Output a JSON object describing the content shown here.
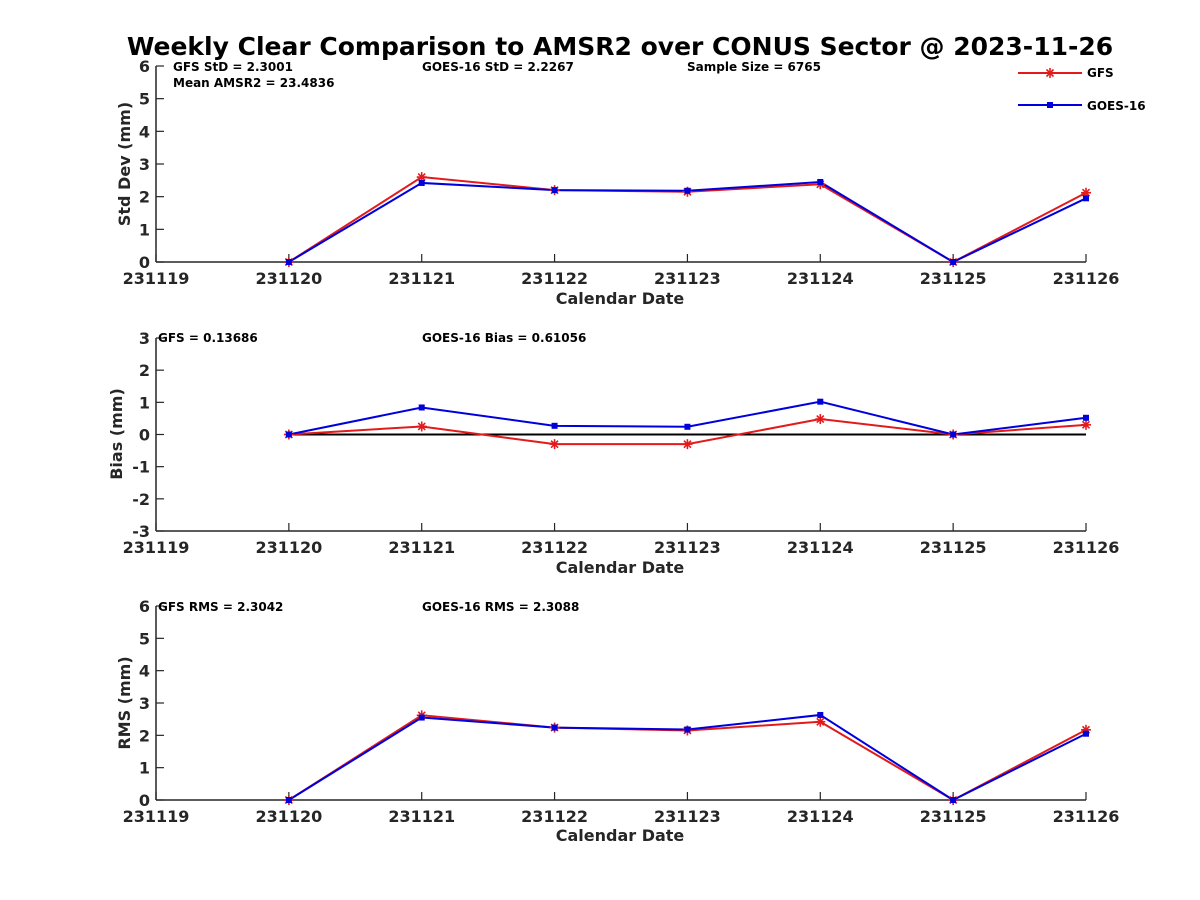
{
  "title": "Weekly Clear Comparison to AMSR2 over CONUS Sector @ 2023-11-26",
  "legend": [
    {
      "name": "GFS",
      "color": "#e31a1c",
      "marker": "asterisk"
    },
    {
      "name": "GOES-16",
      "color": "#0000dd",
      "marker": "square"
    }
  ],
  "chart_data": [
    {
      "type": "line",
      "categories": [
        "231119",
        "231120",
        "231121",
        "231122",
        "231123",
        "231124",
        "231125",
        "231126"
      ],
      "xlabel": "Calendar Date",
      "ylabel": "Std Dev (mm)",
      "ylim": [
        0,
        6
      ],
      "yticks": [
        "0",
        "1",
        "2",
        "3",
        "4",
        "5",
        "6"
      ],
      "annotations": {
        "gfs": "GFS StD = 2.3001",
        "goes": "GOES-16 StD = 2.2267",
        "sample": "Sample Size = 6765",
        "mean": "Mean AMSR2 = 23.4836"
      },
      "series": [
        {
          "name": "GFS",
          "color": "#e31a1c",
          "values": [
            null,
            0.0,
            2.6,
            2.2,
            2.15,
            2.38,
            0.0,
            2.12
          ]
        },
        {
          "name": "GOES-16",
          "color": "#0000dd",
          "values": [
            null,
            0.0,
            2.42,
            2.2,
            2.18,
            2.45,
            0.0,
            1.95
          ]
        }
      ]
    },
    {
      "type": "line",
      "categories": [
        "231119",
        "231120",
        "231121",
        "231122",
        "231123",
        "231124",
        "231125",
        "231126"
      ],
      "xlabel": "Calendar Date",
      "ylabel": "Bias (mm)",
      "ylim": [
        -3,
        3
      ],
      "yticks": [
        "-3",
        "-2",
        "-1",
        "0",
        "1",
        "2",
        "3"
      ],
      "zero_line": true,
      "annotations": {
        "gfs": "GFS = 0.13686",
        "goes": "GOES-16 Bias  = 0.61056"
      },
      "series": [
        {
          "name": "GFS",
          "color": "#e31a1c",
          "values": [
            null,
            0.0,
            0.25,
            -0.3,
            -0.3,
            0.48,
            0.0,
            0.3
          ]
        },
        {
          "name": "GOES-16",
          "color": "#0000dd",
          "values": [
            null,
            0.0,
            0.84,
            0.27,
            0.24,
            1.02,
            0.0,
            0.52
          ]
        }
      ]
    },
    {
      "type": "line",
      "categories": [
        "231119",
        "231120",
        "231121",
        "231122",
        "231123",
        "231124",
        "231125",
        "231126"
      ],
      "xlabel": "Calendar Date",
      "ylabel": "RMS (mm)",
      "ylim": [
        0,
        6
      ],
      "yticks": [
        "0",
        "1",
        "2",
        "3",
        "4",
        "5",
        "6"
      ],
      "annotations": {
        "gfs": "GFS RMS = 2.3042",
        "goes": "GOES-16 RMS = 2.3088"
      },
      "series": [
        {
          "name": "GFS",
          "color": "#e31a1c",
          "values": [
            null,
            0.0,
            2.62,
            2.24,
            2.15,
            2.42,
            0.0,
            2.17
          ]
        },
        {
          "name": "GOES-16",
          "color": "#0000dd",
          "values": [
            null,
            0.0,
            2.55,
            2.24,
            2.18,
            2.63,
            0.0,
            2.05
          ]
        }
      ]
    }
  ]
}
